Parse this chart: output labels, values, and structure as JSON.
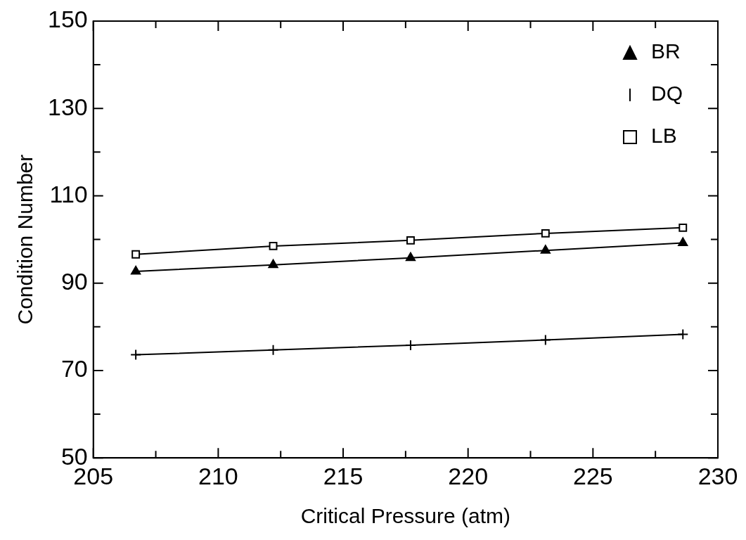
{
  "chart_data": {
    "type": "line",
    "xlabel": "Critical Pressure (atm)",
    "ylabel": "Condition Number",
    "x": [
      206.7,
      212.2,
      217.7,
      223.1,
      228.6
    ],
    "series": [
      {
        "name": "BR",
        "color": "#000000",
        "marker": "triangle",
        "values": [
          92.7,
          94.2,
          95.8,
          97.5,
          99.2
        ]
      },
      {
        "name": "DQ",
        "color": "#000000",
        "marker": "cross",
        "values": [
          73.6,
          74.7,
          75.8,
          77.0,
          78.3
        ]
      },
      {
        "name": "LB",
        "color": "#000000",
        "marker": "square",
        "values": [
          96.6,
          98.5,
          99.8,
          101.4,
          102.7
        ]
      }
    ],
    "xlim": [
      205,
      230
    ],
    "xticks": [
      205,
      {
        "value": 207.5,
        "label": null
      },
      210,
      {
        "value": 212.5,
        "label": null
      },
      215,
      {
        "value": 217.5,
        "label": null
      },
      220,
      {
        "value": 222.5,
        "label": null
      },
      225,
      {
        "value": 227.5,
        "label": null
      },
      230
    ],
    "ylim": [
      50,
      150
    ],
    "yticks": [
      50,
      {
        "value": 60,
        "label": null
      },
      70,
      {
        "value": 80,
        "label": null
      },
      90,
      {
        "value": 100,
        "label": null
      },
      110,
      {
        "value": 120,
        "label": null
      },
      130,
      {
        "value": 140,
        "label": null
      },
      150
    ],
    "grid": false,
    "legend": "top right",
    "line_style": "solid"
  }
}
